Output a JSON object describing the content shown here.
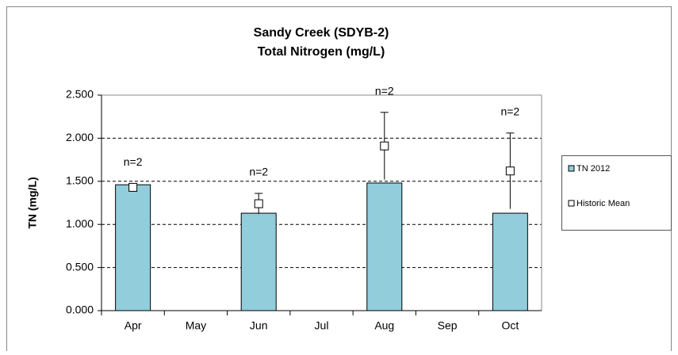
{
  "chart_data": {
    "type": "bar",
    "title": "Sandy Creek (SDYB-2)",
    "subtitle": "Total Nitrogen (mg/L)",
    "y_label": "TN (mg/L)",
    "categories": [
      "Apr",
      "May",
      "Jun",
      "Jul",
      "Aug",
      "Sep",
      "Oct"
    ],
    "series": [
      {
        "name": "TN 2012",
        "color": "#92cddc",
        "values": [
          1.46,
          null,
          1.13,
          null,
          1.48,
          null,
          1.13
        ]
      },
      {
        "name": "Historic Mean",
        "color": "#ffffff",
        "values": [
          1.43,
          null,
          1.24,
          null,
          1.91,
          null,
          1.62
        ],
        "errors": [
          0.03,
          null,
          0.12,
          null,
          0.39,
          null,
          0.44
        ]
      }
    ],
    "annotations": [
      "n=2",
      null,
      "n=2",
      null,
      "n=2",
      null,
      "n=2"
    ],
    "ylim": [
      0,
      2.5
    ],
    "yticks": [
      {
        "value": 0,
        "label": "0.000"
      },
      {
        "value": 0.5,
        "label": "0.500"
      },
      {
        "value": 1,
        "label": "1.000"
      },
      {
        "value": 1.5,
        "label": "1.500"
      },
      {
        "value": 2,
        "label": "2.000"
      },
      {
        "value": 2.5,
        "label": "2.500"
      }
    ],
    "grid": true,
    "legend": "right"
  }
}
